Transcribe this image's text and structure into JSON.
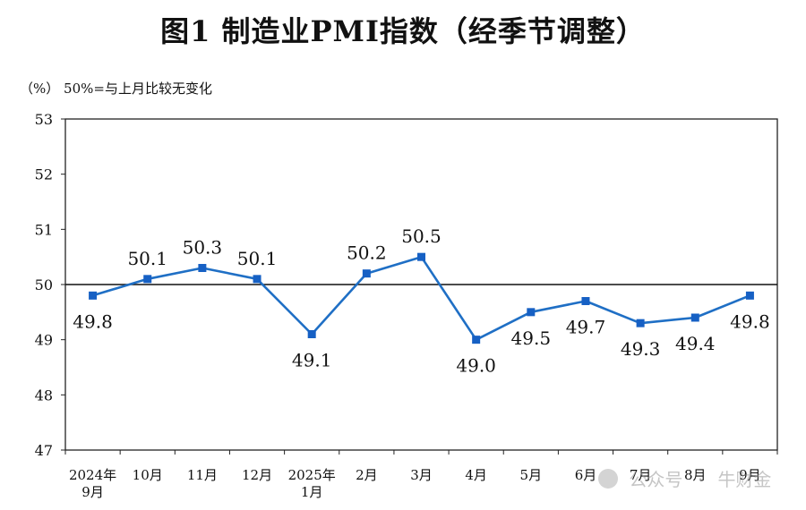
{
  "chart_data": {
    "type": "line",
    "title": "图1  制造业PMI指数（经季节调整）",
    "unit_label": "（%）",
    "reference_note": "50%=与上月比较无变化",
    "reference_value": 50,
    "categories": [
      [
        "2024年",
        "9月"
      ],
      [
        "10月"
      ],
      [
        "11月"
      ],
      [
        "12月"
      ],
      [
        "2025年",
        "1月"
      ],
      [
        "2月"
      ],
      [
        "3月"
      ],
      [
        "4月"
      ],
      [
        "5月"
      ],
      [
        "6月"
      ],
      [
        "7月"
      ],
      [
        "8月"
      ],
      [
        "9月"
      ]
    ],
    "values": [
      49.8,
      50.1,
      50.3,
      50.1,
      49.1,
      50.2,
      50.5,
      49.0,
      49.5,
      49.7,
      49.3,
      49.4,
      49.8
    ],
    "data_labels": [
      "49.8",
      "50.1",
      "50.3",
      "50.1",
      "49.1",
      "50.2",
      "50.5",
      "49.0",
      "49.5",
      "49.7",
      "49.3",
      "49.4",
      "49.8"
    ],
    "label_side": [
      "below",
      "above",
      "above",
      "above",
      "below",
      "above",
      "above",
      "below",
      "below",
      "below",
      "below",
      "below",
      "below"
    ],
    "y_ticks": [
      47,
      48,
      49,
      50,
      51,
      52,
      53
    ],
    "ylim": [
      47,
      53
    ],
    "grid": false,
    "legend": "none",
    "line_color": "#1f6fc5",
    "marker_color": "#1660c4"
  },
  "watermark": {
    "account_type": "公众号",
    "account_name": "牛财金"
  }
}
